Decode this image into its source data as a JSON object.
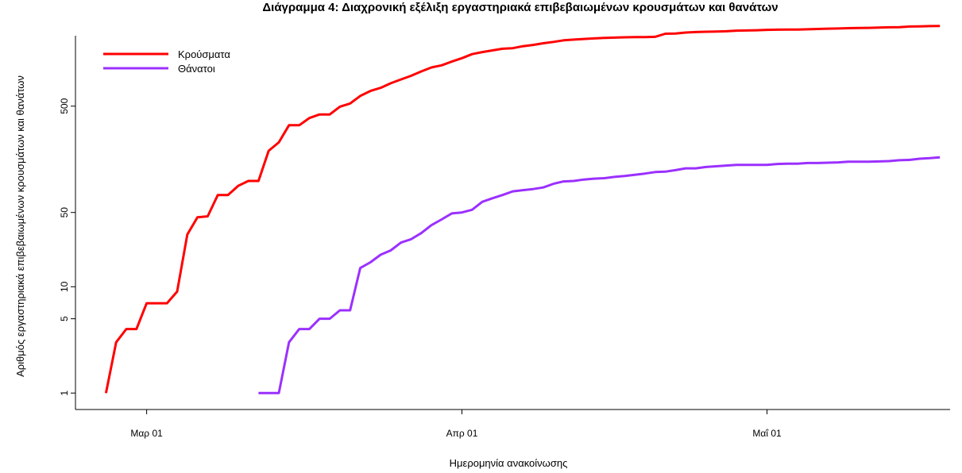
{
  "chart_data": {
    "type": "line",
    "title": "Διάγραμμα 4: Διαχρονική εξέλιξη εργαστηριακά επιβεβαιωμένων κρουσμάτων και θανάτων",
    "xlabel": "Ημερομηνία ανακοίνωσης",
    "ylabel": "Αριθμός εργαστηριακά επιβεβαιωμένων κρουσμάτων και θανάτων",
    "y_scale": "log",
    "ylim": [
      0.7,
      2300
    ],
    "xlim": [
      "2020-02-23",
      "2020-05-19"
    ],
    "yticks": [
      {
        "value": 1,
        "label": "1"
      },
      {
        "value": 5,
        "label": "5"
      },
      {
        "value": 10,
        "label": "10"
      },
      {
        "value": 50,
        "label": "50"
      },
      {
        "value": 500,
        "label": "500"
      }
    ],
    "xticks": [
      {
        "date": "2020-03-01",
        "label": "Μαρ 01"
      },
      {
        "date": "2020-04-01",
        "label": "Απρ 01"
      },
      {
        "date": "2020-05-01",
        "label": "Μαΐ 01"
      }
    ],
    "legend_position": "top-left",
    "series": [
      {
        "name": "Κρούσματα",
        "color": "#ff0000",
        "points": [
          [
            "2020-02-26",
            1
          ],
          [
            "2020-02-27",
            3
          ],
          [
            "2020-02-28",
            4
          ],
          [
            "2020-02-29",
            4
          ],
          [
            "2020-03-01",
            7
          ],
          [
            "2020-03-02",
            7
          ],
          [
            "2020-03-03",
            7
          ],
          [
            "2020-03-04",
            9
          ],
          [
            "2020-03-05",
            31
          ],
          [
            "2020-03-06",
            45
          ],
          [
            "2020-03-07",
            46
          ],
          [
            "2020-03-08",
            73
          ],
          [
            "2020-03-09",
            73
          ],
          [
            "2020-03-10",
            89
          ],
          [
            "2020-03-11",
            99
          ],
          [
            "2020-03-12",
            99
          ],
          [
            "2020-03-13",
            190
          ],
          [
            "2020-03-14",
            228
          ],
          [
            "2020-03-15",
            331
          ],
          [
            "2020-03-16",
            331
          ],
          [
            "2020-03-17",
            387
          ],
          [
            "2020-03-18",
            418
          ],
          [
            "2020-03-19",
            418
          ],
          [
            "2020-03-20",
            495
          ],
          [
            "2020-03-21",
            530
          ],
          [
            "2020-03-22",
            624
          ],
          [
            "2020-03-23",
            695
          ],
          [
            "2020-03-24",
            743
          ],
          [
            "2020-03-25",
            821
          ],
          [
            "2020-03-26",
            892
          ],
          [
            "2020-03-27",
            966
          ],
          [
            "2020-03-28",
            1061
          ],
          [
            "2020-03-29",
            1156
          ],
          [
            "2020-03-30",
            1212
          ],
          [
            "2020-03-31",
            1314
          ],
          [
            "2020-04-01",
            1415
          ],
          [
            "2020-04-02",
            1544
          ],
          [
            "2020-04-03",
            1613
          ],
          [
            "2020-04-04",
            1673
          ],
          [
            "2020-04-05",
            1735
          ],
          [
            "2020-04-06",
            1755
          ],
          [
            "2020-04-07",
            1832
          ],
          [
            "2020-04-08",
            1884
          ],
          [
            "2020-04-09",
            1955
          ],
          [
            "2020-04-10",
            2011
          ],
          [
            "2020-04-11",
            2081
          ],
          [
            "2020-04-12",
            2114
          ],
          [
            "2020-04-13",
            2145
          ],
          [
            "2020-04-14",
            2170
          ],
          [
            "2020-04-15",
            2192
          ],
          [
            "2020-04-16",
            2207
          ],
          [
            "2020-04-17",
            2224
          ],
          [
            "2020-04-18",
            2235
          ],
          [
            "2020-04-19",
            2235
          ],
          [
            "2020-04-20",
            2245
          ],
          [
            "2020-04-21",
            2401
          ],
          [
            "2020-04-22",
            2408
          ],
          [
            "2020-04-23",
            2463
          ],
          [
            "2020-04-24",
            2490
          ],
          [
            "2020-04-25",
            2506
          ],
          [
            "2020-04-26",
            2517
          ],
          [
            "2020-04-27",
            2534
          ],
          [
            "2020-04-28",
            2566
          ],
          [
            "2020-04-29",
            2576
          ],
          [
            "2020-04-30",
            2591
          ],
          [
            "2020-05-01",
            2612
          ],
          [
            "2020-05-02",
            2620
          ],
          [
            "2020-05-03",
            2626
          ],
          [
            "2020-05-04",
            2632
          ],
          [
            "2020-05-05",
            2642
          ],
          [
            "2020-05-06",
            2663
          ],
          [
            "2020-05-07",
            2678
          ],
          [
            "2020-05-08",
            2691
          ],
          [
            "2020-05-09",
            2710
          ],
          [
            "2020-05-10",
            2716
          ],
          [
            "2020-05-11",
            2726
          ],
          [
            "2020-05-12",
            2744
          ],
          [
            "2020-05-13",
            2760
          ],
          [
            "2020-05-14",
            2770
          ],
          [
            "2020-05-15",
            2810
          ],
          [
            "2020-05-16",
            2819
          ],
          [
            "2020-05-17",
            2834
          ],
          [
            "2020-05-18",
            2836
          ]
        ]
      },
      {
        "name": "Θάνατοι",
        "color": "#9b30ff",
        "points": [
          [
            "2020-03-12",
            1
          ],
          [
            "2020-03-13",
            1
          ],
          [
            "2020-03-14",
            1
          ],
          [
            "2020-03-15",
            3
          ],
          [
            "2020-03-16",
            4
          ],
          [
            "2020-03-17",
            4
          ],
          [
            "2020-03-18",
            5
          ],
          [
            "2020-03-19",
            5
          ],
          [
            "2020-03-20",
            6
          ],
          [
            "2020-03-21",
            6
          ],
          [
            "2020-03-22",
            15
          ],
          [
            "2020-03-23",
            17
          ],
          [
            "2020-03-24",
            20
          ],
          [
            "2020-03-25",
            22
          ],
          [
            "2020-03-26",
            26
          ],
          [
            "2020-03-27",
            28
          ],
          [
            "2020-03-28",
            32
          ],
          [
            "2020-03-29",
            38
          ],
          [
            "2020-03-30",
            43
          ],
          [
            "2020-03-31",
            49
          ],
          [
            "2020-04-01",
            50
          ],
          [
            "2020-04-02",
            53
          ],
          [
            "2020-04-03",
            63
          ],
          [
            "2020-04-04",
            68
          ],
          [
            "2020-04-05",
            73
          ],
          [
            "2020-04-06",
            79
          ],
          [
            "2020-04-07",
            81
          ],
          [
            "2020-04-08",
            83
          ],
          [
            "2020-04-09",
            86
          ],
          [
            "2020-04-10",
            93
          ],
          [
            "2020-04-11",
            98
          ],
          [
            "2020-04-12",
            99
          ],
          [
            "2020-04-13",
            102
          ],
          [
            "2020-04-14",
            104
          ],
          [
            "2020-04-15",
            105
          ],
          [
            "2020-04-16",
            108
          ],
          [
            "2020-04-17",
            110
          ],
          [
            "2020-04-18",
            113
          ],
          [
            "2020-04-19",
            116
          ],
          [
            "2020-04-20",
            120
          ],
          [
            "2020-04-21",
            121
          ],
          [
            "2020-04-22",
            125
          ],
          [
            "2020-04-23",
            130
          ],
          [
            "2020-04-24",
            130
          ],
          [
            "2020-04-25",
            134
          ],
          [
            "2020-04-26",
            136
          ],
          [
            "2020-04-27",
            138
          ],
          [
            "2020-04-28",
            140
          ],
          [
            "2020-04-29",
            140
          ],
          [
            "2020-04-30",
            140
          ],
          [
            "2020-05-01",
            140
          ],
          [
            "2020-05-02",
            143
          ],
          [
            "2020-05-03",
            144
          ],
          [
            "2020-05-04",
            144
          ],
          [
            "2020-05-05",
            146
          ],
          [
            "2020-05-06",
            146
          ],
          [
            "2020-05-07",
            147
          ],
          [
            "2020-05-08",
            148
          ],
          [
            "2020-05-09",
            150
          ],
          [
            "2020-05-10",
            150
          ],
          [
            "2020-05-11",
            150
          ],
          [
            "2020-05-12",
            151
          ],
          [
            "2020-05-13",
            152
          ],
          [
            "2020-05-14",
            155
          ],
          [
            "2020-05-15",
            156
          ],
          [
            "2020-05-16",
            160
          ],
          [
            "2020-05-17",
            162
          ],
          [
            "2020-05-18",
            165
          ]
        ]
      }
    ]
  }
}
